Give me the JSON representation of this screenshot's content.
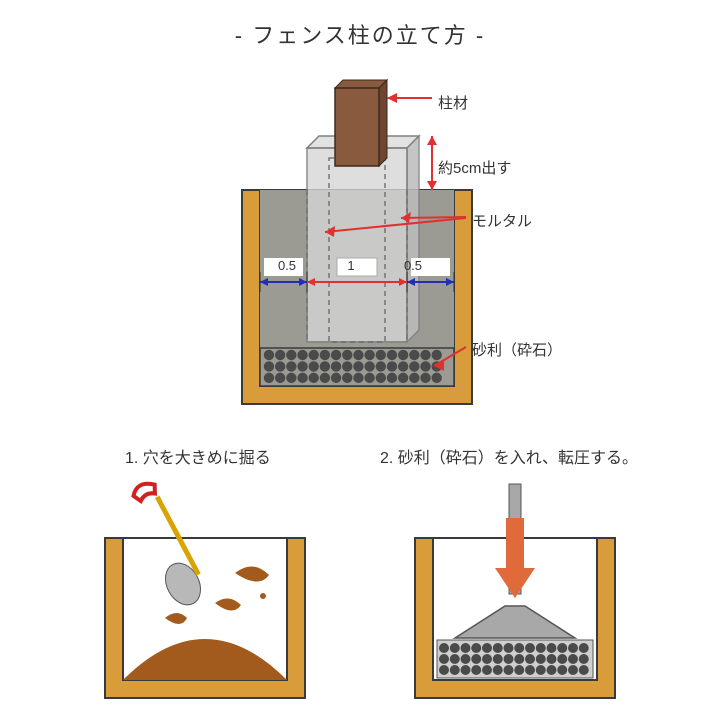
{
  "title": "-  フェンス柱の立て方  -",
  "main": {
    "label_post": "柱材",
    "label_expose": "約5cm出す",
    "label_mortar": "モルタル",
    "label_gravel": "砂利（砕石）",
    "dim_left": "0.5",
    "dim_center": "1",
    "dim_right": "0.5",
    "colors": {
      "ground": "#d99c3a",
      "ground_stroke": "#3a3a3a",
      "hole_fill": "#ffffff",
      "mortar": "#9b9b93",
      "block_fill": "#d6d6d6",
      "block_stroke": "#808080",
      "post": "#8a5a3f",
      "post_side": "#6f4630",
      "gravel": "#4a4a4a",
      "arrow_red": "#e03030",
      "arrow_blue": "#2030b0",
      "dash": "#666666"
    }
  },
  "step1": {
    "caption": "1. 穴を大きめに掘る",
    "colors": {
      "dirt": "#a25b1d",
      "shovel_handle": "#d9a400",
      "shovel_grip": "#d02020",
      "shovel_blade": "#b8b8b8"
    }
  },
  "step2": {
    "caption": "2. 砂利（砕石）を入れ、転圧する。",
    "colors": {
      "arrow": "#e06a3a",
      "tamper": "#a8a8a8"
    }
  }
}
